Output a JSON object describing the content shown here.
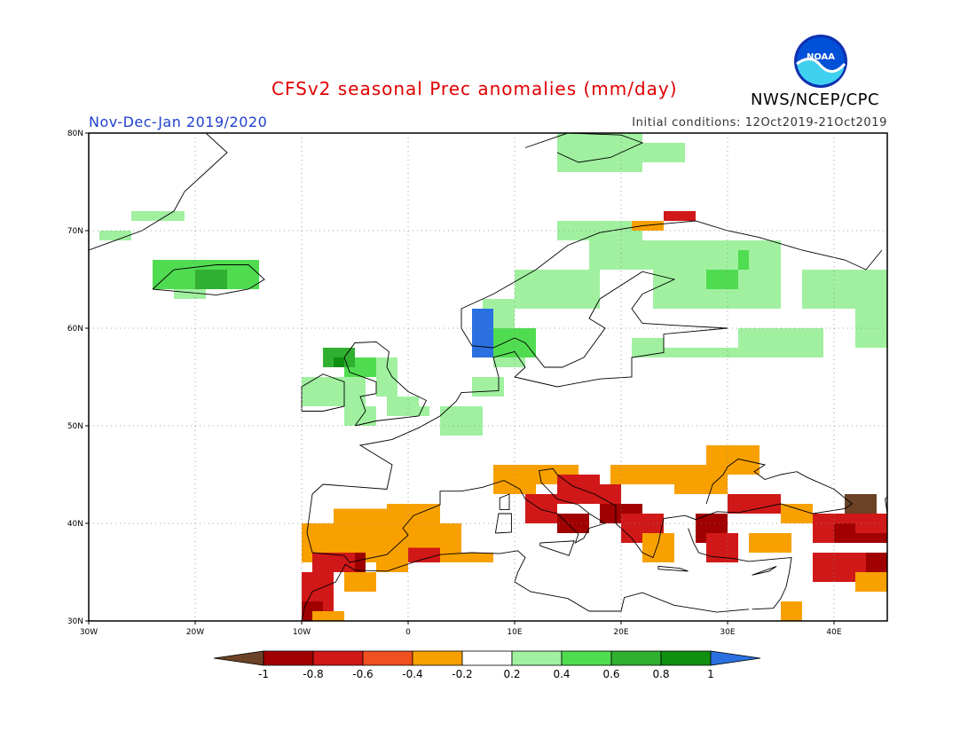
{
  "header": {
    "title": "CFSv2 seasonal Prec anomalies (mm/day)",
    "season": "Nov-Dec-Jan 2019/2020",
    "initial_conditions": "Initial conditions: 12Oct2019-21Oct2019",
    "agency": "NWS/NCEP/CPC",
    "logo_text": "NOAA"
  },
  "map": {
    "lon_range": [
      -30,
      45
    ],
    "lat_range": [
      30,
      80
    ],
    "lon_ticks": [
      "30W",
      "20W",
      "10W",
      "0",
      "10E",
      "20E",
      "30E",
      "40E"
    ],
    "lat_ticks": [
      "30N",
      "40N",
      "50N",
      "60N",
      "70N",
      "80N"
    ],
    "grid": true
  },
  "colorbar": {
    "tick_labels": [
      "-1",
      "-0.8",
      "-0.6",
      "-0.4",
      "-0.2",
      "0.2",
      "0.4",
      "0.6",
      "0.8",
      "1"
    ],
    "colors": [
      "#6b4226",
      "#a00000",
      "#d01818",
      "#f05020",
      "#f8a000",
      "#ffffff",
      "#a0f0a0",
      "#50dc50",
      "#30b030",
      "#109010",
      "#2a70e0"
    ]
  },
  "chart_data": {
    "type": "heatmap",
    "title": "CFSv2 seasonal Prec anomalies (mm/day)",
    "units": "mm/day",
    "region": "Europe",
    "xlim": [
      -30,
      45
    ],
    "ylim": [
      30,
      80
    ]
  }
}
